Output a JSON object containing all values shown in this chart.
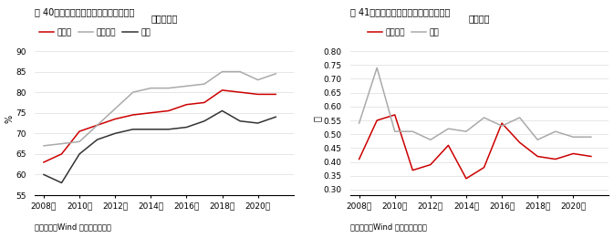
{
  "fig40": {
    "title": "图 40：国企资产负债率显著低于全行业",
    "legend_title": "资产负债率",
    "ylabel": "%",
    "source": "资料来源：Wind 中信期货研究所",
    "ylim": [
      55,
      92
    ],
    "yticks": [
      55,
      60,
      65,
      70,
      75,
      80,
      85,
      90
    ],
    "years": [
      2008,
      2009,
      2010,
      2011,
      2012,
      2013,
      2014,
      2015,
      2016,
      2017,
      2018,
      2019,
      2020,
      2021
    ],
    "全行业": [
      63,
      65,
      70.5,
      72,
      73.5,
      74.5,
      75,
      75.5,
      77,
      77.5,
      80.5,
      80,
      79.5,
      79.5
    ],
    "出险民企": [
      67,
      67.5,
      68,
      72,
      76,
      80,
      81,
      81,
      81.5,
      82,
      85,
      85,
      83,
      84.5
    ],
    "国企": [
      60,
      58,
      65,
      68.5,
      70,
      71,
      71,
      71,
      71.5,
      73,
      75.5,
      73,
      72.5,
      74
    ],
    "series_order": [
      "全行业",
      "出险民企",
      "国企"
    ],
    "colors": {
      "全行业": "#cc0000",
      "出险民企": "#aaaaaa",
      "国企": "#333333"
    },
    "xtick_labels": [
      "2008年",
      "2010年",
      "2012年",
      "2014年",
      "2016年",
      "2018年",
      "2020年"
    ],
    "xtick_positions": [
      2008,
      2010,
      2012,
      2014,
      2016,
      2018,
      2020
    ]
  },
  "fig41": {
    "title": "图 41：国企现金偿债情况好于出险民企",
    "legend_title": "现金比率",
    "ylabel": "倍",
    "source": "资料来源：Wind 中信期货研究所",
    "ylim": [
      0.28,
      0.83
    ],
    "yticks": [
      0.3,
      0.35,
      0.4,
      0.45,
      0.5,
      0.55,
      0.6,
      0.65,
      0.7,
      0.75,
      0.8
    ],
    "years": [
      2008,
      2009,
      2010,
      2011,
      2012,
      2013,
      2014,
      2015,
      2016,
      2017,
      2018,
      2019,
      2020,
      2021
    ],
    "出险民企": [
      0.41,
      0.55,
      0.57,
      0.37,
      0.39,
      0.46,
      0.34,
      0.38,
      0.54,
      0.47,
      0.42,
      0.41,
      0.43,
      0.42
    ],
    "国企": [
      0.54,
      0.74,
      0.51,
      0.51,
      0.48,
      0.52,
      0.51,
      0.56,
      0.53,
      0.56,
      0.48,
      0.51,
      0.49,
      0.49
    ],
    "series_order": [
      "出险民企",
      "国企"
    ],
    "colors": {
      "出险民企": "#cc0000",
      "国企": "#aaaaaa"
    },
    "xtick_labels": [
      "2008年",
      "2010年",
      "2012年",
      "2014年",
      "2016年",
      "2018年",
      "2020年"
    ],
    "xtick_positions": [
      2008,
      2010,
      2012,
      2014,
      2016,
      2018,
      2020
    ]
  }
}
